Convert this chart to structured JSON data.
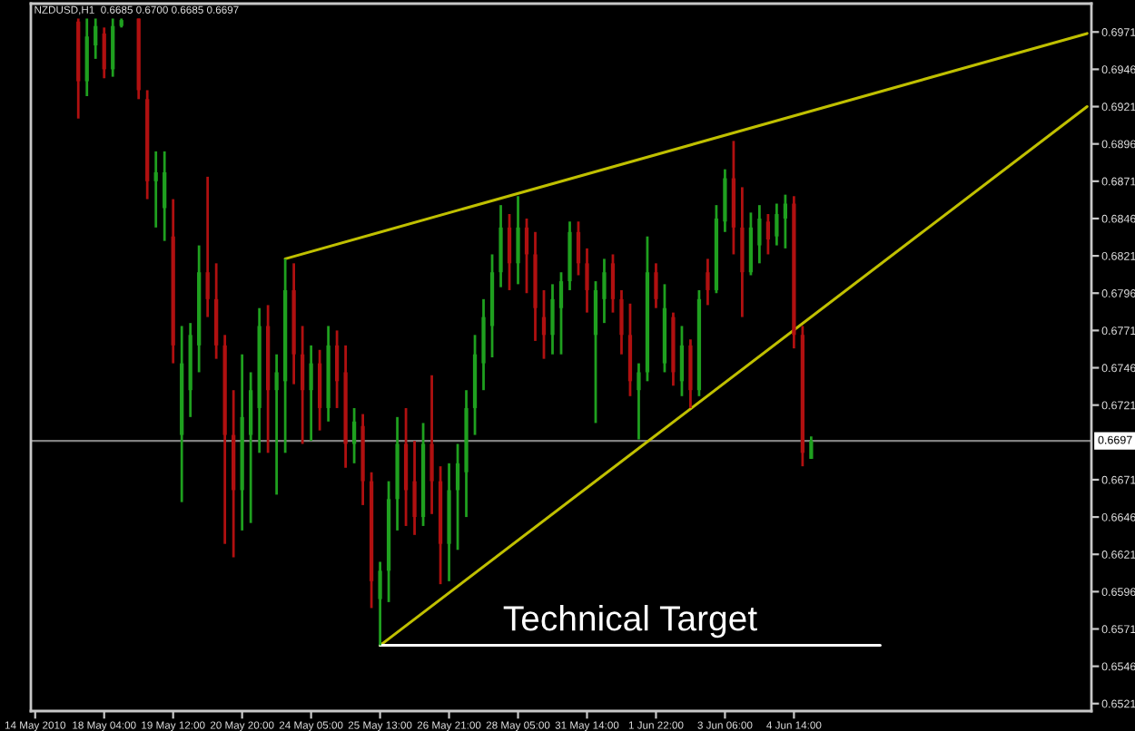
{
  "chart_data": {
    "type": "candlestick",
    "title": "NZDUSD,H1  0.6685 0.6700 0.6685 0.6697",
    "categories": [
      "14 May 2010",
      null,
      null,
      null,
      null,
      null,
      null,
      null,
      "18 May 04:00",
      null,
      null,
      null,
      null,
      null,
      null,
      null,
      "19 May 12:00",
      null,
      null,
      null,
      null,
      null,
      null,
      null,
      "20 May 20:00",
      null,
      null,
      null,
      null,
      null,
      null,
      null,
      "24 May 05:00",
      null,
      null,
      null,
      null,
      null,
      null,
      null,
      "25 May 13:00",
      null,
      null,
      null,
      null,
      null,
      null,
      null,
      "26 May 21:00",
      null,
      null,
      null,
      null,
      null,
      null,
      null,
      "28 May 05:00",
      null,
      null,
      null,
      null,
      null,
      null,
      null,
      "31 May 14:00",
      null,
      null,
      null,
      null,
      null,
      null,
      null,
      "1 Jun 22:00",
      null,
      null,
      null,
      null,
      null,
      null,
      null,
      "3 Jun 06:00",
      null,
      null,
      null,
      null,
      null,
      null,
      null,
      "4 Jun 14:00",
      null,
      null,
      null,
      null,
      null,
      null,
      null,
      null,
      null,
      null,
      null,
      null,
      null,
      null,
      null,
      null,
      null,
      null,
      null,
      null,
      null,
      null,
      null,
      null,
      null,
      null,
      null,
      null,
      null,
      null,
      null,
      null,
      null,
      null
    ],
    "ohlc": [
      null,
      null,
      null,
      null,
      null,
      [
        0.6978,
        0.698,
        0.6913,
        0.6938
      ],
      [
        0.6938,
        0.698,
        0.6928,
        0.6968
      ],
      [
        0.6962,
        0.698,
        0.6953,
        0.6975
      ],
      [
        0.697,
        0.6974,
        0.694,
        0.6946
      ],
      [
        0.6946,
        0.698,
        0.6941,
        0.6975
      ],
      [
        0.6975,
        0.698,
        0.6974,
        0.6979
      ],
      null,
      [
        0.698,
        0.698,
        0.6926,
        0.6932
      ],
      [
        0.6926,
        0.6932,
        0.6859,
        0.6871
      ],
      [
        0.6871,
        0.6891,
        0.684,
        0.6877
      ],
      [
        0.6853,
        0.6891,
        0.6831,
        0.6877
      ],
      [
        0.6834,
        0.6859,
        0.6749,
        0.6761
      ],
      [
        0.6701,
        0.6774,
        0.6656,
        0.6749
      ],
      [
        0.6731,
        0.6776,
        0.6713,
        0.6768
      ],
      [
        0.6761,
        0.6828,
        0.6743,
        0.681
      ],
      [
        0.681,
        0.6874,
        0.678,
        0.6792
      ],
      [
        0.6792,
        0.6816,
        0.6752,
        0.6761
      ],
      [
        0.6761,
        0.6768,
        0.6628,
        0.6701
      ],
      [
        0.6701,
        0.6731,
        0.6619,
        0.6664
      ],
      [
        0.6664,
        0.6755,
        0.6637,
        0.6713
      ],
      [
        0.6701,
        0.6743,
        0.6642,
        0.6731
      ],
      [
        0.6719,
        0.6786,
        0.6689,
        0.6774
      ],
      [
        0.6774,
        0.6788,
        0.6689,
        0.6731
      ],
      [
        0.6731,
        0.6755,
        0.6661,
        0.6743
      ],
      [
        0.6737,
        0.6819,
        0.6689,
        0.6798
      ],
      [
        0.6798,
        0.6816,
        0.6735,
        0.6755
      ],
      [
        0.6755,
        0.6774,
        0.6695,
        0.6731
      ],
      [
        0.6731,
        0.6761,
        0.6697,
        0.6749
      ],
      [
        0.6749,
        0.6758,
        0.6704,
        0.6719
      ],
      [
        0.6719,
        0.6774,
        0.671,
        0.6761
      ],
      [
        0.6761,
        0.6771,
        0.6719,
        0.6737
      ],
      [
        0.6743,
        0.6761,
        0.6679,
        0.6695
      ],
      [
        0.6695,
        0.6719,
        0.6682,
        0.671
      ],
      [
        0.6707,
        0.6715,
        0.6654,
        0.667
      ],
      [
        0.667,
        0.6676,
        0.6585,
        0.6603
      ],
      [
        0.6591,
        0.6616,
        0.656,
        0.661
      ],
      [
        0.661,
        0.667,
        0.6589,
        0.6658
      ],
      [
        0.6658,
        0.6713,
        0.6637,
        0.6695
      ],
      [
        0.6695,
        0.6719,
        0.664,
        0.6664
      ],
      [
        0.667,
        0.6697,
        0.6634,
        0.6646
      ],
      [
        0.6646,
        0.6709,
        0.664,
        0.6695
      ],
      [
        0.6695,
        0.6741,
        0.6648,
        0.667
      ],
      [
        0.667,
        0.668,
        0.6601,
        0.6628
      ],
      [
        0.6628,
        0.6682,
        0.6603,
        0.6664
      ],
      [
        0.6664,
        0.6695,
        0.6624,
        0.6682
      ],
      [
        0.6676,
        0.6731,
        0.6646,
        0.6719
      ],
      [
        0.6719,
        0.6768,
        0.6701,
        0.6755
      ],
      [
        0.6749,
        0.6792,
        0.6731,
        0.678
      ],
      [
        0.6774,
        0.6822,
        0.6753,
        0.681
      ],
      [
        0.681,
        0.6855,
        0.68,
        0.684
      ],
      [
        0.684,
        0.6849,
        0.6798,
        0.6816
      ],
      [
        0.6816,
        0.6861,
        0.6802,
        0.684
      ],
      [
        0.684,
        0.6846,
        0.6796,
        0.6822
      ],
      [
        0.6822,
        0.6837,
        0.6764,
        0.6786
      ],
      [
        0.678,
        0.6798,
        0.6752,
        0.6768
      ],
      [
        0.6768,
        0.6802,
        0.6755,
        0.6792
      ],
      [
        0.6786,
        0.681,
        0.6755,
        0.6804
      ],
      [
        0.6804,
        0.6844,
        0.6798,
        0.6837
      ],
      [
        0.6837,
        0.6844,
        0.6808,
        0.6816
      ],
      [
        0.6816,
        0.6826,
        0.6783,
        0.6798
      ],
      [
        0.6768,
        0.6804,
        0.6709,
        0.6798
      ],
      [
        0.6792,
        0.6819,
        0.6776,
        0.681
      ],
      [
        0.6816,
        0.6822,
        0.6783,
        0.6792
      ],
      [
        0.6792,
        0.6798,
        0.6755,
        0.6768
      ],
      [
        0.6768,
        0.6789,
        0.6727,
        0.6737
      ],
      [
        0.6731,
        0.6749,
        0.6698,
        0.6743
      ],
      [
        0.6743,
        0.6834,
        0.6737,
        0.681
      ],
      [
        0.681,
        0.6816,
        0.6786,
        0.6792
      ],
      [
        0.6749,
        0.6802,
        0.6743,
        0.6786
      ],
      [
        0.678,
        0.6783,
        0.6734,
        0.6743
      ],
      [
        0.6737,
        0.6774,
        0.6727,
        0.6761
      ],
      [
        0.6761,
        0.6765,
        0.6719,
        0.6731
      ],
      [
        0.6731,
        0.6798,
        0.6727,
        0.6792
      ],
      [
        0.681,
        0.6819,
        0.6788,
        0.6798
      ],
      [
        0.6798,
        0.6855,
        0.6796,
        0.6846
      ],
      [
        0.6844,
        0.6879,
        0.6837,
        0.6873
      ],
      [
        0.6873,
        0.6898,
        0.6822,
        0.684
      ],
      [
        0.684,
        0.6867,
        0.678,
        0.681
      ],
      [
        0.681,
        0.685,
        0.6808,
        0.684
      ],
      [
        0.6828,
        0.6855,
        0.6816,
        0.6846
      ],
      [
        0.6844,
        0.6849,
        0.6822,
        0.6832
      ],
      [
        0.6834,
        0.6856,
        0.6828,
        0.6849
      ],
      [
        0.6846,
        0.6862,
        0.6826,
        0.6856
      ],
      [
        0.6856,
        0.6861,
        0.6759,
        0.6768
      ],
      [
        0.6768,
        0.6774,
        0.668,
        0.6689
      ],
      [
        0.6685,
        0.67,
        0.6685,
        0.6697
      ],
      null,
      null,
      null,
      null,
      null,
      null,
      null,
      null,
      null,
      null,
      null,
      null,
      null,
      null,
      null,
      null,
      null,
      null,
      null,
      null,
      null,
      null,
      null,
      null,
      null,
      null,
      null,
      null,
      null,
      null,
      null,
      null
    ],
    "colors": [
      null,
      null,
      null,
      null,
      null,
      "#b01010",
      "#1fa01f",
      "#1fa01f",
      "#b01010",
      "#1fa01f",
      "#1fa01f",
      null,
      "#b01010",
      "#b01010",
      "#1fa01f",
      "#1fa01f",
      "#b01010",
      "#1fa01f",
      "#1fa01f",
      "#1fa01f",
      "#b01010",
      "#b01010",
      "#b01010",
      "#b01010",
      "#1fa01f",
      "#1fa01f",
      "#1fa01f",
      "#b01010",
      "#1fa01f",
      "#1fa01f",
      "#b01010",
      "#b01010",
      "#1fa01f",
      "#b01010",
      "#1fa01f",
      "#b01010",
      "#b01010",
      "#1fa01f",
      "#b01010",
      "#b01010",
      "#1fa01f",
      "#1fa01f",
      "#1fa01f",
      "#b01010",
      "#b01010",
      "#1fa01f",
      "#b01010",
      "#b01010",
      "#1fa01f",
      "#1fa01f",
      "#1fa01f",
      "#1fa01f",
      "#1fa01f",
      "#1fa01f",
      "#1fa01f",
      "#b01010",
      "#1fa01f",
      "#b01010",
      "#b01010",
      "#b01010",
      "#1fa01f",
      "#1fa01f",
      "#1fa01f",
      "#b01010",
      "#b01010",
      "#1fa01f",
      "#1fa01f",
      "#b01010",
      "#b01010",
      "#b01010",
      "#1fa01f",
      "#1fa01f",
      "#b01010",
      "#1fa01f",
      "#b01010",
      "#1fa01f",
      "#b01010",
      "#1fa01f",
      "#b01010",
      "#1fa01f",
      "#1fa01f",
      "#b01010",
      "#b01010",
      "#1fa01f",
      "#1fa01f",
      "#b01010",
      "#1fa01f",
      "#1fa01f",
      "#b01010",
      "#b01010",
      "#1fa01f",
      null,
      null,
      null,
      null,
      null,
      null,
      null,
      null,
      null,
      null,
      null,
      null,
      null,
      null,
      null,
      null,
      null,
      null,
      null,
      null,
      null,
      null,
      null,
      null,
      null,
      null,
      null,
      null,
      null,
      null,
      null,
      null
    ],
    "ylim": [
      0.6516,
      0.699
    ],
    "yticks": [
      0.6521,
      0.6546,
      0.6571,
      0.6596,
      0.6621,
      0.6646,
      0.6671,
      0.6721,
      0.6746,
      0.6771,
      0.6796,
      0.6821,
      0.6846,
      0.6871,
      0.6896,
      0.6921,
      0.6946,
      0.6971
    ],
    "series": [
      {
        "type": "line",
        "color": "#c0c000",
        "values": [
          null,
          null,
          null,
          null,
          null,
          null,
          null,
          null,
          null,
          null,
          null,
          null,
          null,
          null,
          null,
          null,
          null,
          null,
          null,
          null,
          null,
          null,
          null,
          null,
          null,
          null,
          null,
          null,
          null,
          0.6819,
          null,
          null,
          null,
          null,
          null,
          null,
          null,
          null,
          null,
          null,
          null,
          null,
          null,
          null,
          null,
          null,
          null,
          null,
          null,
          null,
          null,
          null,
          null,
          null,
          null,
          null,
          null,
          null,
          null,
          null,
          null,
          null,
          null,
          null,
          null,
          null,
          null,
          null,
          null,
          null,
          null,
          null,
          null,
          null,
          null,
          null,
          null,
          null,
          null,
          null,
          null,
          null,
          null,
          null,
          null,
          null,
          null,
          null,
          null,
          null,
          null,
          null,
          null,
          null,
          null,
          null,
          null,
          null,
          null,
          null,
          null,
          null,
          null,
          null,
          null,
          null,
          null,
          null,
          null,
          null,
          null,
          null,
          null,
          null,
          null,
          null,
          null,
          null,
          null,
          null,
          null,
          null,
          0.697
        ]
      },
      {
        "type": "line",
        "color": "#c0c000",
        "values": [
          null,
          null,
          null,
          null,
          null,
          null,
          null,
          null,
          null,
          null,
          null,
          null,
          null,
          null,
          null,
          null,
          null,
          null,
          null,
          null,
          null,
          null,
          null,
          null,
          null,
          null,
          null,
          null,
          null,
          null,
          null,
          null,
          null,
          null,
          null,
          null,
          null,
          null,
          null,
          null,
          0.656,
          null,
          null,
          null,
          null,
          null,
          null,
          null,
          null,
          null,
          null,
          null,
          null,
          null,
          null,
          null,
          null,
          null,
          null,
          null,
          null,
          null,
          null,
          null,
          null,
          null,
          null,
          null,
          null,
          null,
          null,
          null,
          null,
          null,
          null,
          null,
          null,
          null,
          null,
          null,
          null,
          null,
          null,
          null,
          null,
          null,
          null,
          null,
          null,
          null,
          null,
          null,
          null,
          null,
          null,
          null,
          null,
          null,
          null,
          null,
          null,
          null,
          null,
          null,
          null,
          null,
          null,
          null,
          null,
          null,
          null,
          null,
          null,
          null,
          null,
          null,
          null,
          null,
          null,
          null,
          null,
          null,
          0.6921
        ]
      },
      {
        "type": "line",
        "name": "Technical Target",
        "color": "#ffffff",
        "values": [
          null,
          null,
          null,
          null,
          null,
          null,
          null,
          null,
          null,
          null,
          null,
          null,
          null,
          null,
          null,
          null,
          null,
          null,
          null,
          null,
          null,
          null,
          null,
          null,
          null,
          null,
          null,
          null,
          null,
          null,
          null,
          null,
          null,
          null,
          null,
          null,
          null,
          null,
          null,
          null,
          0.656,
          null,
          null,
          null,
          null,
          null,
          null,
          null,
          null,
          null,
          null,
          null,
          null,
          null,
          null,
          null,
          null,
          null,
          null,
          null,
          null,
          null,
          null,
          null,
          null,
          null,
          null,
          null,
          null,
          null,
          null,
          null,
          null,
          null,
          null,
          null,
          null,
          null,
          null,
          null,
          null,
          null,
          null,
          null,
          null,
          null,
          null,
          null,
          null,
          null,
          null,
          null,
          null,
          null,
          null,
          null,
          null,
          null,
          0.656,
          null,
          null,
          null,
          null,
          null,
          null,
          null,
          null,
          null,
          null,
          null,
          null,
          null,
          null,
          null,
          null,
          null,
          null,
          null,
          null,
          null,
          null,
          null,
          null
        ]
      }
    ],
    "ref_lines": [
      {
        "axis": "y",
        "value": 0.6697,
        "label": "0.6697",
        "color": "#808080"
      }
    ]
  }
}
